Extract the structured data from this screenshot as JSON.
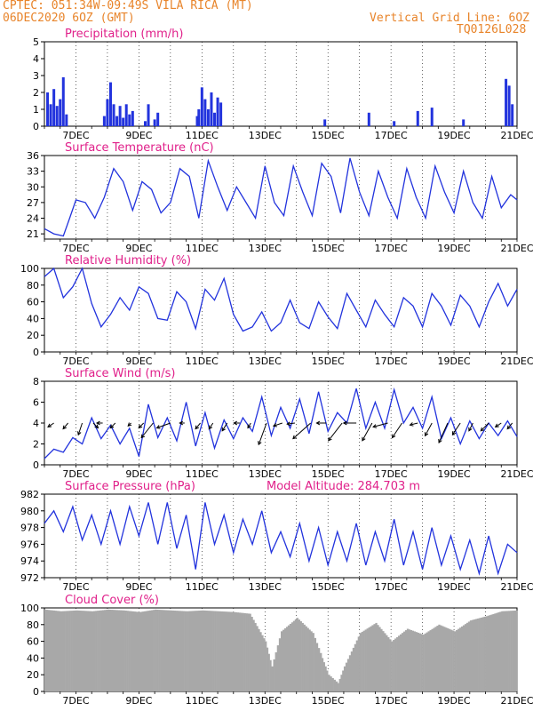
{
  "header": {
    "line1": "CPTEC:  051:34W-09:49S  VILA RICA (MT)",
    "line2": "06DEC2020 6OZ (GMT)",
    "grid_note": "Vertical Grid Line: 6OZ",
    "code": "TQ0126L028"
  },
  "colors": {
    "header": "#e8842a",
    "title": "#e0208a",
    "line": "#2233dd",
    "cloud": "#a8a8a8"
  },
  "x_ticks": [
    "7DEC",
    "9DEC",
    "11DEC",
    "13DEC",
    "15DEC",
    "17DEC",
    "19DEC",
    "21DEC"
  ],
  "chart_data": [
    {
      "type": "bar",
      "title": "Precipitation (mm/h)",
      "ylim": [
        0,
        5
      ],
      "yticks": [
        "0",
        "1",
        "2",
        "3",
        "4",
        "5"
      ],
      "x": [
        6.1,
        6.2,
        6.3,
        6.4,
        6.5,
        6.6,
        6.7,
        7.9,
        8.0,
        8.1,
        8.2,
        8.3,
        8.4,
        8.5,
        8.6,
        8.7,
        8.8,
        9.2,
        9.3,
        9.5,
        9.6,
        10.85,
        10.9,
        11.0,
        11.1,
        11.2,
        11.3,
        11.4,
        11.5,
        11.6,
        14.9,
        16.3,
        17.1,
        17.85,
        18.3,
        19.3,
        20.65,
        20.75,
        20.85
      ],
      "values": [
        2.0,
        1.3,
        2.2,
        1.2,
        1.6,
        2.9,
        0.7,
        0.6,
        1.6,
        2.6,
        1.3,
        0.6,
        1.2,
        0.5,
        1.3,
        0.7,
        0.9,
        0.3,
        1.3,
        0.4,
        0.8,
        0.6,
        1.0,
        2.3,
        1.6,
        1.0,
        2.0,
        0.8,
        1.7,
        1.4,
        0.4,
        0.8,
        0.3,
        0.9,
        1.1,
        0.4,
        2.8,
        2.4,
        1.3
      ]
    },
    {
      "type": "line",
      "title": "Surface Temperature (nC)",
      "ylim": [
        20,
        36
      ],
      "yticks": [
        "21",
        "24",
        "27",
        "30",
        "33",
        "36"
      ],
      "x": [
        6.0,
        6.3,
        6.6,
        6.8,
        7.0,
        7.3,
        7.6,
        7.9,
        8.2,
        8.5,
        8.8,
        9.1,
        9.4,
        9.7,
        10.0,
        10.3,
        10.6,
        10.9,
        11.2,
        11.5,
        11.8,
        12.1,
        12.4,
        12.7,
        13.0,
        13.3,
        13.6,
        13.9,
        14.2,
        14.5,
        14.8,
        15.1,
        15.4,
        15.7,
        16.0,
        16.3,
        16.6,
        16.9,
        17.2,
        17.5,
        17.8,
        18.1,
        18.4,
        18.7,
        19.0,
        19.3,
        19.6,
        19.9,
        20.2,
        20.5,
        20.8,
        21.0
      ],
      "y": [
        22.0,
        21.0,
        20.6,
        24.0,
        27.5,
        27.0,
        24.0,
        28.0,
        33.5,
        31.0,
        25.5,
        31.0,
        29.5,
        25.0,
        27.0,
        33.5,
        32.0,
        24.0,
        35.0,
        30.0,
        25.5,
        30.0,
        27.0,
        24.0,
        34.0,
        27.0,
        24.5,
        34.0,
        29.0,
        24.5,
        34.5,
        32.0,
        25.0,
        35.5,
        29.0,
        24.5,
        33.0,
        28.0,
        24.0,
        33.5,
        28.0,
        24.0,
        34.0,
        29.0,
        25.0,
        33.0,
        27.0,
        24.0,
        32.0,
        26.0,
        28.5,
        27.5
      ]
    },
    {
      "type": "line",
      "title": "Relative Humidity (%)",
      "ylim": [
        0,
        100
      ],
      "yticks": [
        "0",
        "20",
        "40",
        "60",
        "80",
        "100"
      ],
      "x": [
        6.0,
        6.3,
        6.6,
        6.9,
        7.2,
        7.5,
        7.8,
        8.1,
        8.4,
        8.7,
        9.0,
        9.3,
        9.6,
        9.9,
        10.2,
        10.5,
        10.8,
        11.1,
        11.4,
        11.7,
        12.0,
        12.3,
        12.6,
        12.9,
        13.2,
        13.5,
        13.8,
        14.1,
        14.4,
        14.7,
        15.0,
        15.3,
        15.6,
        15.9,
        16.2,
        16.5,
        16.8,
        17.1,
        17.4,
        17.7,
        18.0,
        18.3,
        18.6,
        18.9,
        19.2,
        19.5,
        19.8,
        20.1,
        20.4,
        20.7,
        21.0
      ],
      "y": [
        90,
        100,
        65,
        78,
        100,
        58,
        30,
        45,
        65,
        50,
        78,
        70,
        40,
        38,
        72,
        60,
        28,
        75,
        62,
        88,
        45,
        25,
        30,
        48,
        25,
        35,
        62,
        35,
        28,
        60,
        42,
        28,
        70,
        50,
        30,
        62,
        45,
        30,
        65,
        55,
        30,
        70,
        55,
        32,
        68,
        55,
        30,
        60,
        82,
        55,
        75
      ]
    },
    {
      "type": "line",
      "title": "Surface Wind (m/s)",
      "ylim": [
        0,
        8
      ],
      "yticks": [
        "0",
        "2",
        "4",
        "6",
        "8"
      ],
      "x": [
        6.0,
        6.3,
        6.6,
        6.9,
        7.2,
        7.5,
        7.8,
        8.1,
        8.4,
        8.7,
        9.0,
        9.3,
        9.6,
        9.9,
        10.2,
        10.5,
        10.8,
        11.1,
        11.4,
        11.7,
        12.0,
        12.3,
        12.6,
        12.9,
        13.2,
        13.5,
        13.8,
        14.1,
        14.4,
        14.7,
        15.0,
        15.3,
        15.6,
        15.9,
        16.2,
        16.5,
        16.8,
        17.1,
        17.4,
        17.7,
        18.0,
        18.3,
        18.6,
        18.9,
        19.2,
        19.5,
        19.8,
        20.1,
        20.4,
        20.7,
        21.0
      ],
      "y": [
        0.6,
        1.5,
        1.2,
        2.6,
        2.0,
        4.5,
        2.5,
        3.8,
        2.0,
        3.5,
        0.8,
        5.8,
        2.6,
        4.5,
        2.3,
        6.0,
        1.8,
        5.0,
        1.6,
        4.3,
        2.5,
        4.5,
        3.2,
        6.5,
        2.8,
        5.5,
        3.5,
        6.3,
        3.0,
        7.0,
        3.2,
        5.0,
        4.0,
        7.3,
        3.5,
        6.0,
        3.5,
        7.2,
        4.0,
        5.5,
        3.5,
        6.5,
        2.5,
        4.5,
        2.0,
        4.2,
        2.5,
        4.0,
        2.8,
        4.2,
        2.7
      ],
      "arrows": [
        {
          "x": 6.3,
          "u": -0.6,
          "v": -0.4
        },
        {
          "x": 6.75,
          "u": -0.5,
          "v": -0.6
        },
        {
          "x": 7.2,
          "u": -0.4,
          "v": -1.2
        },
        {
          "x": 7.55,
          "u": 0.5,
          "v": -0.5
        },
        {
          "x": 7.85,
          "u": -0.6,
          "v": 0.0
        },
        {
          "x": 8.25,
          "u": -0.5,
          "v": -0.5
        },
        {
          "x": 8.75,
          "u": -0.3,
          "v": -0.3
        },
        {
          "x": 9.15,
          "u": -0.5,
          "v": -0.5
        },
        {
          "x": 9.45,
          "u": -1.2,
          "v": -1.5
        },
        {
          "x": 10.0,
          "u": -1.4,
          "v": -0.5
        },
        {
          "x": 10.45,
          "u": -0.5,
          "v": 0.0
        },
        {
          "x": 10.95,
          "u": -0.5,
          "v": -0.6
        },
        {
          "x": 11.35,
          "u": -0.4,
          "v": -0.6
        },
        {
          "x": 11.8,
          "u": -0.5,
          "v": -0.8
        },
        {
          "x": 12.2,
          "u": -0.6,
          "v": 0.0
        },
        {
          "x": 12.55,
          "u": -0.3,
          "v": -0.5
        },
        {
          "x": 13.05,
          "u": -0.8,
          "v": -2.2
        },
        {
          "x": 13.55,
          "u": -0.9,
          "v": -0.3
        },
        {
          "x": 13.95,
          "u": -0.8,
          "v": -0.1
        },
        {
          "x": 14.45,
          "u": -1.8,
          "v": -1.6
        },
        {
          "x": 14.95,
          "u": -1.0,
          "v": 0.0
        },
        {
          "x": 15.45,
          "u": -1.4,
          "v": -1.8
        },
        {
          "x": 15.9,
          "u": -1.3,
          "v": 0.0
        },
        {
          "x": 16.4,
          "u": -1.0,
          "v": -1.8
        },
        {
          "x": 16.9,
          "u": -1.5,
          "v": -0.4
        },
        {
          "x": 17.35,
          "u": -1.0,
          "v": -1.5
        },
        {
          "x": 17.85,
          "u": -0.8,
          "v": -0.2
        },
        {
          "x": 18.3,
          "u": -0.7,
          "v": -1.3
        },
        {
          "x": 18.8,
          "u": -0.9,
          "v": -2.0
        },
        {
          "x": 19.2,
          "u": -0.8,
          "v": -1.2
        },
        {
          "x": 19.6,
          "u": -0.4,
          "v": -0.8
        },
        {
          "x": 20.1,
          "u": -0.8,
          "v": -0.8
        },
        {
          "x": 20.5,
          "u": -0.6,
          "v": -0.4
        },
        {
          "x": 20.85,
          "u": -0.5,
          "v": -0.6
        }
      ]
    },
    {
      "type": "line",
      "title": "Surface Pressure (hPa)",
      "subtitle": "Model Altitude: 284.703 m",
      "ylim": [
        972,
        982
      ],
      "yticks": [
        "972",
        "974",
        "976",
        "978",
        "980",
        "982"
      ],
      "x": [
        6.0,
        6.3,
        6.6,
        6.9,
        7.2,
        7.5,
        7.8,
        8.1,
        8.4,
        8.7,
        9.0,
        9.3,
        9.6,
        9.9,
        10.2,
        10.5,
        10.8,
        11.1,
        11.4,
        11.7,
        12.0,
        12.3,
        12.6,
        12.9,
        13.2,
        13.5,
        13.8,
        14.1,
        14.4,
        14.7,
        15.0,
        15.3,
        15.6,
        15.9,
        16.2,
        16.5,
        16.8,
        17.1,
        17.4,
        17.7,
        18.0,
        18.3,
        18.6,
        18.9,
        19.2,
        19.5,
        19.8,
        20.1,
        20.4,
        20.7,
        21.0
      ],
      "y": [
        978.5,
        980.0,
        977.5,
        980.5,
        976.5,
        979.5,
        976.0,
        980.0,
        976.0,
        980.5,
        977.0,
        981.0,
        976.0,
        981.0,
        975.5,
        979.5,
        973.0,
        981.0,
        976.0,
        979.5,
        975.0,
        979.0,
        976.0,
        980.0,
        975.0,
        977.5,
        974.5,
        978.5,
        974.0,
        978.0,
        973.5,
        977.5,
        974.0,
        978.5,
        973.5,
        977.5,
        974.0,
        979.0,
        973.5,
        977.5,
        973.0,
        978.0,
        973.5,
        977.0,
        973.0,
        976.5,
        972.5,
        977.0,
        972.5,
        976.0,
        975.0
      ]
    },
    {
      "type": "bar",
      "title": "Cloud Cover (%)",
      "ylim": [
        0,
        100
      ],
      "yticks": [
        "0",
        "20",
        "40",
        "60",
        "80",
        "100"
      ],
      "x": [
        6.0,
        6.5,
        7.0,
        7.5,
        8.0,
        8.5,
        9.0,
        9.5,
        10.0,
        10.5,
        11.0,
        11.5,
        12.0,
        12.5,
        13.0,
        13.2,
        13.5,
        14.0,
        14.5,
        14.8,
        15.0,
        15.3,
        15.5,
        16.0,
        16.5,
        17.0,
        17.5,
        18.0,
        18.5,
        19.0,
        19.5,
        20.0,
        20.5,
        21.0
      ],
      "values": [
        98,
        96,
        97,
        96,
        98,
        97,
        95,
        98,
        97,
        96,
        97,
        96,
        95,
        93,
        60,
        30,
        72,
        88,
        70,
        40,
        20,
        10,
        30,
        70,
        82,
        60,
        75,
        68,
        80,
        72,
        85,
        90,
        96,
        97
      ]
    }
  ]
}
